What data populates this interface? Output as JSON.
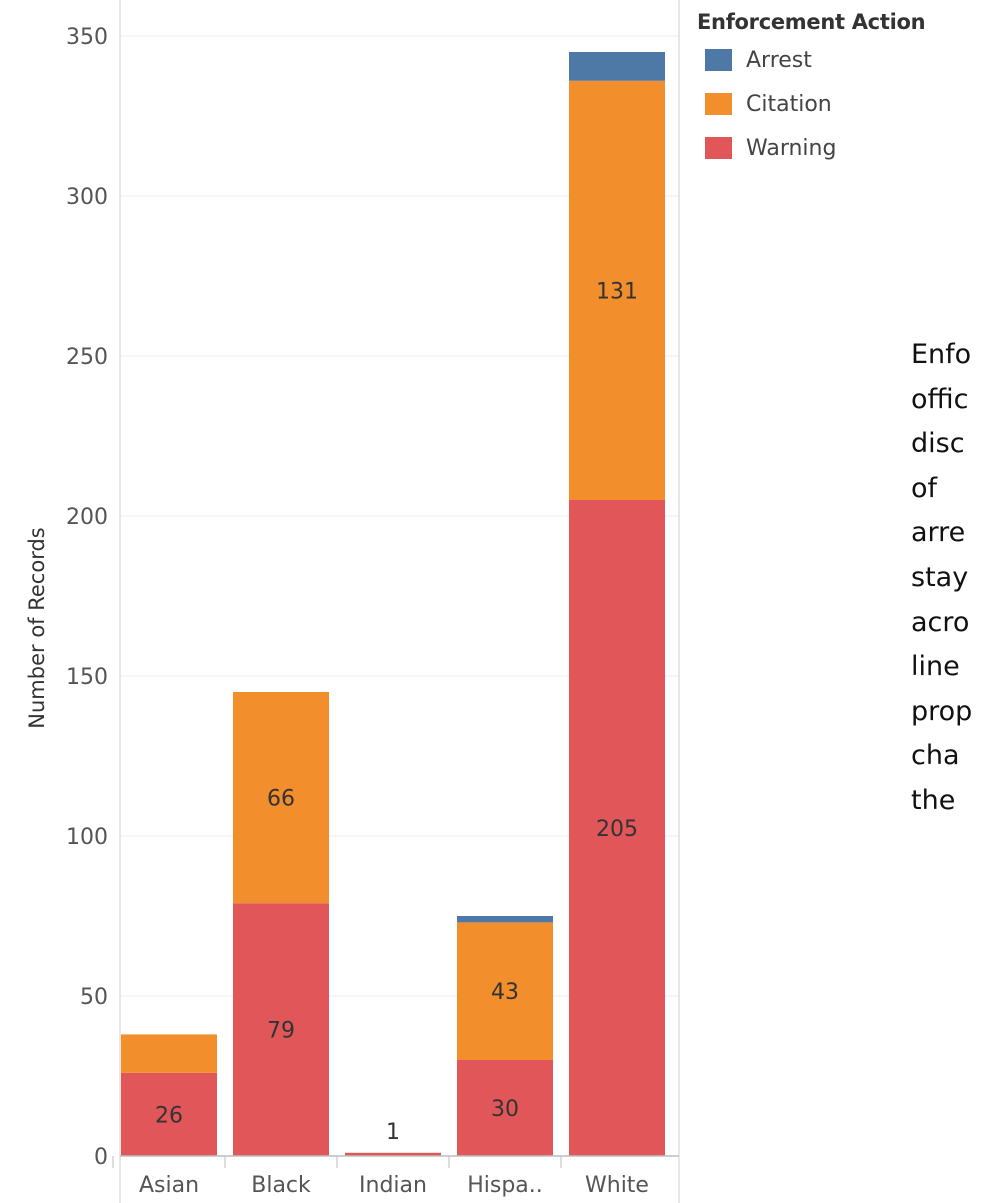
{
  "chart_data": {
    "type": "bar",
    "stacked": true,
    "categories": [
      "Asian",
      "Black",
      "Indian",
      "Hispa..",
      "White"
    ],
    "series": [
      {
        "name": "Warning",
        "color": "#e15759",
        "values": [
          26,
          79,
          1,
          30,
          205
        ]
      },
      {
        "name": "Citation",
        "color": "#f28e2b",
        "values": [
          12,
          66,
          0,
          43,
          131
        ]
      },
      {
        "name": "Arrest",
        "color": "#4e79a7",
        "values": [
          0,
          0,
          0,
          2,
          9
        ]
      }
    ],
    "segment_labels": {
      "Warning": [
        "26",
        "79",
        "1",
        "30",
        "205"
      ],
      "Citation": [
        "",
        "66",
        "",
        "43",
        "131"
      ],
      "Arrest": [
        "",
        "",
        "",
        "",
        ""
      ]
    },
    "ylabel": "Number of Records",
    "xlabel": "",
    "ylim": [
      0,
      360
    ],
    "yticks": [
      0,
      50,
      100,
      150,
      200,
      250,
      300,
      350
    ],
    "grid": true,
    "legend": {
      "title": "Enforcement Action",
      "placement": "right",
      "items": [
        {
          "name": "Arrest",
          "color": "#4e79a7"
        },
        {
          "name": "Citation",
          "color": "#f28e2b"
        },
        {
          "name": "Warning",
          "color": "#e15759"
        }
      ]
    }
  },
  "side_text": {
    "lines": [
      "Enfo",
      "offic",
      "disc",
      "of",
      "arre",
      "stay",
      "acro",
      "line",
      "prop",
      "cha",
      "the"
    ]
  }
}
